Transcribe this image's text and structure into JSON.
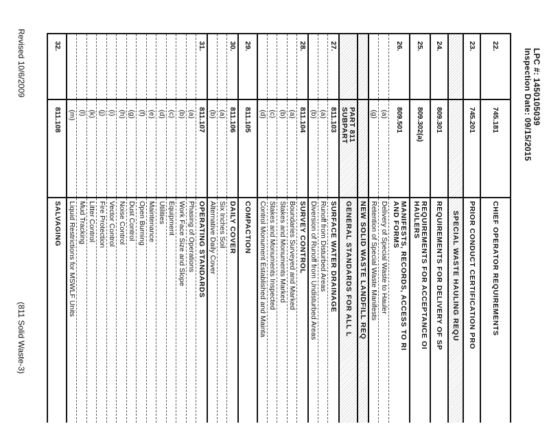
{
  "header": {
    "lpc": "LPC #: 1450105039",
    "inspection_date": "Inspection Date: 09/15/2015"
  },
  "rows": [
    {
      "type": "main",
      "num": "22.",
      "code": "745.181",
      "desc": "CHIEF OPERATOR REQUIREMENTS"
    },
    {
      "type": "main",
      "num": "23.",
      "code": "745.201",
      "desc": "PRIOR CONDUCT CERTIFICATION PRO"
    },
    {
      "type": "section",
      "num": "",
      "code": "",
      "desc": "SPECIAL WASTE HAULING REQU",
      "indent": true
    },
    {
      "type": "main",
      "num": "24.",
      "code": "809.301",
      "desc": "REQUIREMENTS FOR DELIVERY OF SP"
    },
    {
      "type": "main",
      "num": "25.",
      "code": "809.302(a)",
      "desc": "REQUIREMENTS FOR ACCEPTANCE OI\nHAULERS"
    },
    {
      "type": "main",
      "num": "26.",
      "code": "809.501",
      "desc": "MANIFESTS, RECORDS, ACCESS TO RI\nAND FORMS"
    },
    {
      "type": "sub",
      "num": "",
      "code": "(a)",
      "desc": "Delivery of Special Waste to Hauler"
    },
    {
      "type": "sub",
      "num": "",
      "code": "(g)",
      "desc": "Retention of Special Waste Manifests"
    },
    {
      "type": "section",
      "num": "",
      "code": "",
      "desc": "NEW SOLID WASTE LANDFILL REQ"
    },
    {
      "type": "section part",
      "num": "",
      "code": "PART 811\nSUBPART",
      "desc": "GENERAL STANDARDS FOR ALL L"
    },
    {
      "type": "main",
      "num": "27.",
      "code": "811.103",
      "desc": "SURFACE WATER DRAINAGE"
    },
    {
      "type": "sub",
      "num": "",
      "code": "(a)",
      "desc": "Runoff from Disturbed Areas"
    },
    {
      "type": "sub",
      "num": "",
      "code": "(b)",
      "desc": "Diversion of Runoff from Undisturbed Areas"
    },
    {
      "type": "main",
      "num": "28.",
      "code": "811.104",
      "desc": "SURVEY CONTROL"
    },
    {
      "type": "sub",
      "num": "",
      "code": "(a)",
      "desc": "Boundaries Surveyed and Marked"
    },
    {
      "type": "sub",
      "num": "",
      "code": "(b)",
      "desc": "Stakes and Monuments Marked"
    },
    {
      "type": "sub",
      "num": "",
      "code": "(c)",
      "desc": "Stakes and Monuments Inspected"
    },
    {
      "type": "sub",
      "num": "",
      "code": "(d)",
      "desc": "Control Monument Established and Mainta"
    },
    {
      "type": "main",
      "num": "29.",
      "code": "811.105",
      "desc": "COMPACTION"
    },
    {
      "type": "main",
      "num": "30.",
      "code": "811.106",
      "desc": "DAILY COVER"
    },
    {
      "type": "sub",
      "num": "",
      "code": "(a)",
      "desc": "Six Inches Soil"
    },
    {
      "type": "sub",
      "num": "",
      "code": "(b)",
      "desc": "Alternative Daily Cover"
    },
    {
      "type": "main",
      "num": "31.",
      "code": "811.107",
      "desc": "OPERATING STANDARDS"
    },
    {
      "type": "sub",
      "num": "",
      "code": "(a)",
      "desc": "Phasing of Operations"
    },
    {
      "type": "sub",
      "num": "",
      "code": "(b)",
      "desc": "Work Face Size and Slope"
    },
    {
      "type": "sub",
      "num": "",
      "code": "(c)",
      "desc": "Equipment"
    },
    {
      "type": "sub",
      "num": "",
      "code": "(d)",
      "desc": "Utilities"
    },
    {
      "type": "sub",
      "num": "",
      "code": "(e)",
      "desc": "Maintenance"
    },
    {
      "type": "sub",
      "num": "",
      "code": "(f)",
      "desc": "Open Burning"
    },
    {
      "type": "sub",
      "num": "",
      "code": "(g)",
      "desc": "Dust Control"
    },
    {
      "type": "sub",
      "num": "",
      "code": "(h)",
      "desc": "Noise Control"
    },
    {
      "type": "sub",
      "num": "",
      "code": "(i)",
      "desc": "Vector Control"
    },
    {
      "type": "sub",
      "num": "",
      "code": "(j)",
      "desc": "Fire Protection"
    },
    {
      "type": "sub",
      "num": "",
      "code": "(k)",
      "desc": "Litter Control"
    },
    {
      "type": "sub",
      "num": "",
      "code": "(l)",
      "desc": "Mud Tracking"
    },
    {
      "type": "sub",
      "num": "",
      "code": "(m)",
      "desc": "Liquid Restrictions for MSWLF Units"
    },
    {
      "type": "main",
      "num": "32.",
      "code": "811.108",
      "desc": "SALVAGING"
    }
  ],
  "footer": {
    "revised": "Revised 10/6/2009",
    "page_label": "(811 Solid Waste-3)"
  }
}
